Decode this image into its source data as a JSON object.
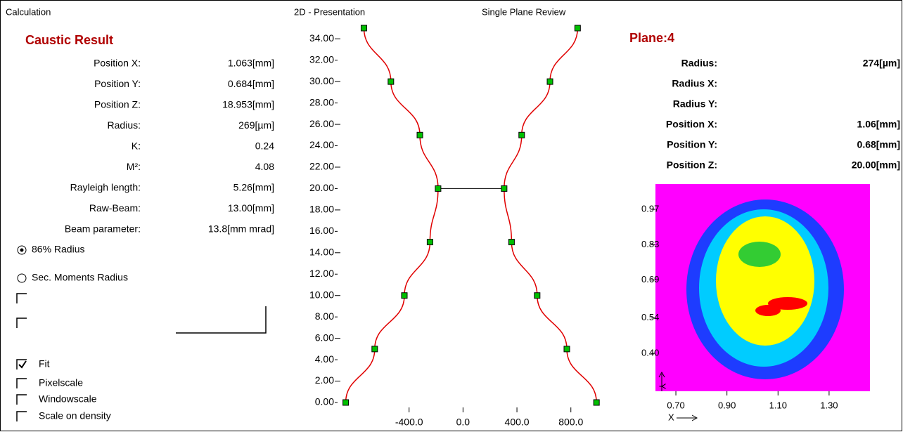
{
  "calculation": {
    "title": "Calculation",
    "heading": "Caustic Result",
    "rows": [
      {
        "label": "Position X:",
        "value": "1.063[mm]"
      },
      {
        "label": "Position Y:",
        "value": "0.684[mm]"
      },
      {
        "label": "Position Z:",
        "value": "18.953[mm]"
      },
      {
        "label": "Radius:",
        "value": "269[µm]"
      },
      {
        "label": "K:",
        "value": "0.24"
      },
      {
        "label": "M²:",
        "value": "4.08"
      },
      {
        "label": "Rayleigh length:",
        "value": "5.26[mm]"
      },
      {
        "label": "Raw-Beam:",
        "value": "13.00[mm]"
      },
      {
        "label": "Beam parameter:",
        "value": "13.8[mm mrad]"
      }
    ],
    "options": [
      {
        "label": "86% Radius",
        "selected": true
      },
      {
        "label": "Sec. Moments Radius",
        "selected": false
      }
    ],
    "checkboxes": [
      {
        "checked": false
      },
      {
        "checked": false
      },
      {
        "label": "Fit",
        "checked": true
      },
      {
        "label": "Pixelscale",
        "checked": false
      },
      {
        "label": "Windowscale",
        "checked": false
      },
      {
        "label": "Scale on density",
        "checked": false
      }
    ]
  },
  "presentation": {
    "title": "2D - Presentation",
    "xlim": [
      -920,
      1010
    ],
    "ylim": [
      0,
      35
    ],
    "xticks": [
      {
        "value": -400,
        "label": "-400.0"
      },
      {
        "value": 0,
        "label": "0.0"
      },
      {
        "value": 400,
        "label": "400.0"
      },
      {
        "value": 800,
        "label": "800.0"
      }
    ],
    "yticks": [
      {
        "value": 0,
        "label": "0.00"
      },
      {
        "value": 2,
        "label": "2.00"
      },
      {
        "value": 4,
        "label": "4.00"
      },
      {
        "value": 6,
        "label": "6.00"
      },
      {
        "value": 8,
        "label": "8.00"
      },
      {
        "value": 10,
        "label": "10.00"
      },
      {
        "value": 12,
        "label": "12.00"
      },
      {
        "value": 14,
        "label": "14.00"
      },
      {
        "value": 16,
        "label": "16.00"
      },
      {
        "value": 18,
        "label": "18.00"
      },
      {
        "value": 20,
        "label": "20.00"
      },
      {
        "value": 22,
        "label": "22.00"
      },
      {
        "value": 24,
        "label": "24.00"
      },
      {
        "value": 26,
        "label": "26.00"
      },
      {
        "value": 28,
        "label": "28.00"
      },
      {
        "value": 30,
        "label": "30.00"
      },
      {
        "value": 32,
        "label": "32.00"
      },
      {
        "value": 34,
        "label": "34.00"
      }
    ],
    "z": [
      0,
      5,
      10,
      15,
      20,
      25,
      30,
      35
    ],
    "left": [
      -870,
      -655,
      -435,
      -245,
      -185,
      -320,
      -535,
      -735
    ],
    "right": [
      990,
      770,
      550,
      360,
      305,
      435,
      645,
      850
    ],
    "waist_z": 20,
    "curve_color": "#e00000",
    "marker_color": "#00c000"
  },
  "review": {
    "title": "Single Plane Review",
    "heading": "Plane:4",
    "rows": [
      {
        "label": "Radius:",
        "value": "274[µm]"
      },
      {
        "label": "Radius X:"
      },
      {
        "label": "Radius Y:"
      },
      {
        "label": "Position X:",
        "value": "1.06[mm]"
      },
      {
        "label": "Position Y:",
        "value": "0.68[mm]"
      },
      {
        "label": "Position Z:",
        "value": "20.00[mm]"
      }
    ],
    "image": {
      "xlim": [
        0.62,
        1.46
      ],
      "ylim": [
        0.25,
        1.07
      ],
      "xticks": [
        {
          "value": 0.7,
          "label": "0.70"
        },
        {
          "value": 0.9,
          "label": "0.90"
        },
        {
          "value": 1.1,
          "label": "1.10"
        },
        {
          "value": 1.3,
          "label": "1.30"
        }
      ],
      "yticks": [
        {
          "value": 0.97,
          "label": "0.97"
        },
        {
          "value": 0.83,
          "label": "0.83"
        },
        {
          "value": 0.69,
          "label": "0.69"
        },
        {
          "value": 0.54,
          "label": "0.54"
        },
        {
          "value": 0.4,
          "label": "0.40"
        }
      ],
      "xlabel": "X",
      "ylabel": "Y"
    }
  }
}
